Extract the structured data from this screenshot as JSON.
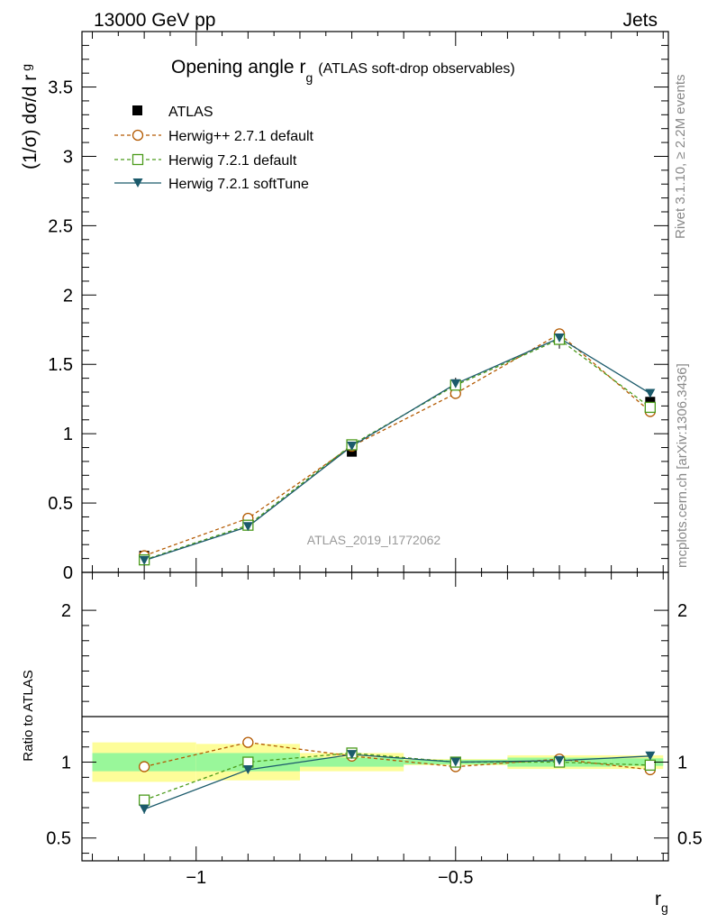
{
  "header": {
    "left": "13000 GeV pp",
    "right": "Jets"
  },
  "side_labels": {
    "rivet": "Rivet 3.1.10, ≥ 2.2M events",
    "mcplots": "mcplots.cern.ch [arXiv:1306.3436]"
  },
  "chart_data": [
    {
      "type": "line",
      "title": "Opening angle r",
      "title_sub": "g",
      "title_note": "(ATLAS soft-drop observables)",
      "watermark": "ATLAS_2019_I1772062",
      "ylabel": "(1/σ) dσ/d r",
      "ylabel_sub": "g",
      "xlim": [
        -1.22,
        -0.09
      ],
      "ylim": [
        0,
        3.9
      ],
      "yticks": [
        0,
        0.5,
        1,
        1.5,
        2,
        2.5,
        3,
        3.5
      ],
      "ytick_labels": [
        "0",
        "0.5",
        "1",
        "1.5",
        "2",
        "2.5",
        "3",
        "3.5"
      ],
      "x": [
        -1.1,
        -0.9,
        -0.7,
        -0.5,
        -0.3,
        -0.125
      ],
      "legend_placement": "top-left",
      "series": [
        {
          "name": "ATLAS",
          "marker": "filled-square",
          "color": "#000000",
          "values": [
            0.12,
            0.35,
            0.87,
            1.35,
            1.68,
            1.23
          ]
        },
        {
          "name": "Herwig++ 2.7.1 default",
          "marker": "open-circle",
          "color": "#b35900",
          "dashed": true,
          "values": [
            0.12,
            0.39,
            0.91,
            1.29,
            1.72,
            1.16
          ]
        },
        {
          "name": "Herwig 7.2.1 default",
          "marker": "open-square",
          "color": "#4a9a1a",
          "dashed": true,
          "values": [
            0.09,
            0.34,
            0.92,
            1.35,
            1.68,
            1.19
          ]
        },
        {
          "name": "Herwig 7.2.1 softTune",
          "marker": "filled-triangle-down",
          "color": "#1b5a6b",
          "dashed": false,
          "values": [
            0.085,
            0.33,
            0.91,
            1.36,
            1.69,
            1.29
          ]
        }
      ]
    },
    {
      "type": "line",
      "ylabel": "Ratio to ATLAS",
      "xlabel": "r",
      "xlabel_sub": "g",
      "xlim": [
        -1.22,
        -0.09
      ],
      "ylim": [
        0.35,
        2.25
      ],
      "yticks": [
        0.5,
        1,
        2
      ],
      "ytick_labels": [
        "0.5",
        "1",
        "2"
      ],
      "xticks": [
        -1,
        -0.5
      ],
      "xtick_labels": [
        "−1",
        "−0.5"
      ],
      "x": [
        -1.1,
        -0.9,
        -0.7,
        -0.5,
        -0.3,
        -0.125
      ],
      "bands": [
        {
          "xmin": -1.2,
          "xmax": -1.0,
          "stat": [
            0.94,
            1.06
          ],
          "total": [
            0.87,
            1.13
          ]
        },
        {
          "xmin": -1.0,
          "xmax": -0.8,
          "stat": [
            0.94,
            1.06
          ],
          "total": [
            0.88,
            1.12
          ]
        },
        {
          "xmin": -0.8,
          "xmax": -0.6,
          "stat": [
            0.97,
            1.03
          ],
          "total": [
            0.94,
            1.06
          ]
        },
        {
          "xmin": -0.6,
          "xmax": -0.4,
          "stat": [
            0.985,
            1.015
          ],
          "total": [
            0.98,
            1.02
          ]
        },
        {
          "xmin": -0.4,
          "xmax": -0.2,
          "stat": [
            0.97,
            1.03
          ],
          "total": [
            0.955,
            1.045
          ]
        },
        {
          "xmin": -0.2,
          "xmax": -0.1,
          "stat": [
            0.975,
            1.025
          ],
          "total": [
            0.955,
            1.045
          ]
        }
      ],
      "series": [
        {
          "name": "Herwig++ 2.7.1 default",
          "color": "#b35900",
          "dashed": true,
          "marker": "open-circle",
          "values": [
            0.97,
            1.13,
            1.04,
            0.97,
            1.02,
            0.95
          ]
        },
        {
          "name": "Herwig 7.2.1 default",
          "color": "#4a9a1a",
          "dashed": true,
          "marker": "open-square",
          "values": [
            0.75,
            1.0,
            1.06,
            1.0,
            1.0,
            0.98
          ]
        },
        {
          "name": "Herwig 7.2.1 softTune",
          "color": "#1b5a6b",
          "dashed": false,
          "marker": "filled-triangle-down",
          "values": [
            0.69,
            0.95,
            1.05,
            1.0,
            1.01,
            1.04
          ]
        }
      ]
    }
  ]
}
